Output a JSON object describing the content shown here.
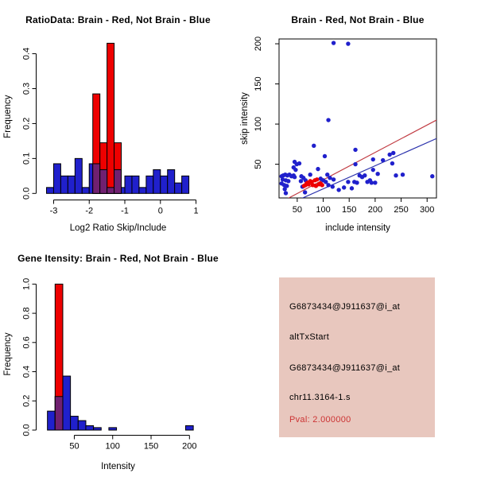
{
  "window": {
    "background": "#FFFFFF"
  },
  "colors": {
    "bar_blue": "#2020CC",
    "bar_red": "#EE0000",
    "overlap_purple": "#702070",
    "point_blue": "#2020CC",
    "point_red": "#EE0000",
    "fit_line_red": "#C13B42",
    "fit_line_blue": "#2B32AC",
    "axis_black": "#000000",
    "info_background": "#E8C7BE",
    "info_text": "#000000",
    "pval_red": "#CC3333"
  },
  "chart_data": [
    {
      "id": "ratio-histogram",
      "type": "histogram",
      "title": "RatioData: Brain - Red, Not Brain - Blue",
      "xlabel": "Log2 Ratio Skip/Include",
      "ylabel": "Frequency",
      "xlim": [
        -3.39,
        1.01
      ],
      "ylim": [
        0,
        0.44
      ],
      "x_ticks": [
        -3,
        -2,
        -1,
        0,
        1
      ],
      "x_tick_labels": [
        "-3",
        "-2",
        "-1",
        "0",
        "1"
      ],
      "y_ticks": [
        0,
        0.1,
        0.2,
        0.3,
        0.4
      ],
      "y_tick_labels": [
        "0.0",
        "0.1",
        "0.2",
        "0.3",
        "0.4"
      ],
      "series": [
        {
          "name": "not-brain",
          "color_key": "bar_blue",
          "bin_start": -3.2,
          "bin_width": 0.2,
          "heights": [
            0.017,
            0.085,
            0.05,
            0.05,
            0.1,
            0.017,
            0.085,
            0.068,
            0.017,
            0.068,
            0.017,
            0.05,
            0.05,
            0.017,
            0.05,
            0.068,
            0.05,
            0.068,
            0.03,
            0.05
          ]
        },
        {
          "name": "brain",
          "color_key": "bar_red",
          "bin_start": -1.9,
          "bin_width": 0.2,
          "heights": [
            0.285,
            0.145,
            0.43,
            0.145
          ],
          "overlap_heights": [
            0.085,
            0.068,
            0.017,
            0.068
          ]
        }
      ]
    },
    {
      "id": "intensity-scatter",
      "type": "scatter",
      "title": "Brain - Red, Not Brain - Blue",
      "xlabel": "include intensity",
      "ylabel": "skip intensity",
      "xlim": [
        15,
        318
      ],
      "ylim": [
        8,
        206
      ],
      "x_ticks": [
        50,
        100,
        150,
        200,
        250,
        300
      ],
      "x_tick_labels": [
        "50",
        "100",
        "150",
        "200",
        "250",
        "300"
      ],
      "y_ticks": [
        50,
        100,
        150,
        200
      ],
      "y_tick_labels": [
        "50",
        "100",
        "150",
        "200"
      ],
      "series": [
        {
          "name": "not-brain-points",
          "color_key": "point_blue",
          "points": [
            [
              120,
              201
            ],
            [
              148,
              200
            ],
            [
              110,
              105
            ],
            [
              82,
              73
            ],
            [
              162,
              68
            ],
            [
              103,
              60
            ],
            [
              235,
              64
            ],
            [
              228,
              62
            ],
            [
              196,
              56
            ],
            [
              215,
              55
            ],
            [
              233,
              51
            ],
            [
              45,
              53
            ],
            [
              49,
              50
            ],
            [
              54,
              51
            ],
            [
              43,
              46
            ],
            [
              47,
              43
            ],
            [
              162,
              50
            ],
            [
              90,
              44
            ],
            [
              196,
              43
            ],
            [
              20,
              35
            ],
            [
              23,
              36
            ],
            [
              27,
              37
            ],
            [
              31,
              36
            ],
            [
              35,
              37
            ],
            [
              39,
              35
            ],
            [
              43,
              36
            ],
            [
              22,
              31
            ],
            [
              28,
              30
            ],
            [
              33,
              29
            ],
            [
              20,
              26
            ],
            [
              25,
              24
            ],
            [
              30,
              23
            ],
            [
              26,
              19
            ],
            [
              28,
              14
            ],
            [
              45,
              34
            ],
            [
              58,
              35
            ],
            [
              62,
              33
            ],
            [
              66,
              30
            ],
            [
              57,
              29
            ],
            [
              60,
              22
            ],
            [
              65,
              15
            ],
            [
              75,
              37
            ],
            [
              95,
              32
            ],
            [
              100,
              30
            ],
            [
              108,
              37
            ],
            [
              113,
              33
            ],
            [
              120,
              31
            ],
            [
              105,
              28
            ],
            [
              110,
              24
            ],
            [
              118,
              22
            ],
            [
              130,
              18
            ],
            [
              140,
              21
            ],
            [
              148,
              28
            ],
            [
              155,
              20
            ],
            [
              160,
              28
            ],
            [
              165,
              27
            ],
            [
              170,
              36
            ],
            [
              175,
              34
            ],
            [
              180,
              36
            ],
            [
              185,
              28
            ],
            [
              190,
              30
            ],
            [
              193,
              27
            ],
            [
              200,
              27
            ],
            [
              205,
              38
            ],
            [
              240,
              36
            ],
            [
              253,
              37
            ],
            [
              310,
              35
            ]
          ]
        },
        {
          "name": "brain-points",
          "color_key": "point_red",
          "points": [
            [
              63,
              23
            ],
            [
              66,
              24
            ],
            [
              68,
              26
            ],
            [
              70,
              27
            ],
            [
              72,
              25
            ],
            [
              75,
              29
            ],
            [
              78,
              28
            ],
            [
              80,
              24
            ],
            [
              84,
              30
            ],
            [
              88,
              31
            ],
            [
              92,
              25
            ],
            [
              95,
              26
            ],
            [
              98,
              24
            ],
            [
              86,
              23
            ]
          ]
        }
      ],
      "lines": [
        {
          "name": "fit-line-brain",
          "color_key": "fit_line_red",
          "x": [
            25,
            318
          ],
          "y": [
            5,
            105
          ]
        },
        {
          "name": "fit-line-not-brain",
          "color_key": "fit_line_blue",
          "x": [
            50,
            318
          ],
          "y": [
            5,
            82
          ]
        }
      ]
    },
    {
      "id": "gene-intensity-histogram",
      "type": "histogram",
      "title": "Gene Itensity: Brain - Red, Not Brain - Blue",
      "xlabel": "Intensity",
      "ylabel": "Frequency",
      "xlim": [
        5,
        209
      ],
      "ylim": [
        0,
        1.04
      ],
      "x_ticks": [
        50,
        100,
        150,
        200
      ],
      "x_tick_labels": [
        "50",
        "100",
        "150",
        "200"
      ],
      "y_ticks": [
        0,
        0.2,
        0.4,
        0.6,
        0.8,
        1.0
      ],
      "y_tick_labels": [
        "0.0",
        "0.2",
        "0.4",
        "0.6",
        "0.8",
        "1.0"
      ],
      "series": [
        {
          "name": "not-brain",
          "color_key": "bar_blue",
          "bin_start": 15,
          "bin_width": 10,
          "heights": [
            0.13,
            0.23,
            0.37,
            0.095,
            0.065,
            0.03,
            0.017,
            0,
            0.017,
            0,
            0,
            0,
            0,
            0,
            0,
            0,
            0,
            0,
            0.03
          ]
        },
        {
          "name": "brain",
          "color_key": "bar_red",
          "bin_start": 25,
          "bin_width": 10,
          "heights": [
            1.0
          ],
          "overlap_heights": [
            0.23
          ]
        }
      ]
    }
  ],
  "info_panel": {
    "lines": [
      {
        "text": "G6873434@J911637@i_at",
        "color": "#000000"
      },
      {
        "text": "altTxStart",
        "color": "#000000"
      },
      {
        "text": "G6873434@J911637@i_at",
        "color": "#000000"
      },
      {
        "text": "chr11.3164-1.s",
        "color": "#000000"
      },
      {
        "text": "Pval: 2.000000",
        "color": "#CC3333"
      }
    ]
  }
}
